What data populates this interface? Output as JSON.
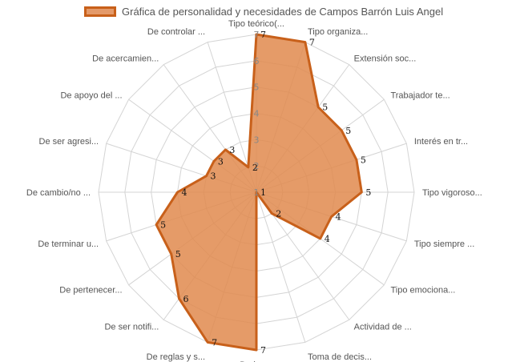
{
  "legend": {
    "label": "Gráfica de personalidad y necesidades de Campos Barrón Luis Angel"
  },
  "colors": {
    "fill": "#e08a4e",
    "stroke": "#c8601a",
    "grid": "#d4d4d4",
    "swatch_fill": "#e49a6a"
  },
  "chart_data": {
    "type": "radar",
    "title": "",
    "legend_position": "top",
    "grid": true,
    "rlim": [
      1,
      7
    ],
    "ticks": [
      "1",
      "2",
      "3",
      "4",
      "5",
      "6",
      "7"
    ],
    "categories": [
      "Tipo teórico(...",
      "Tipo organiza...",
      "Extensión soc...",
      "Trabajador te...",
      "Interés en tr...",
      "Tipo vigoroso...",
      "Tipo siempre ...",
      "Tipo emociona...",
      "Actividad de ...",
      "Toma de decis...",
      "De logro",
      "De reglas y s...",
      "De ser notifi...",
      "De pertenecer...",
      "De terminar u...",
      "De cambio/no ...",
      "De ser agresi...",
      "De apoyo del ...",
      "De acercamien...",
      "De controlar ..."
    ],
    "series": [
      {
        "name": "Gráfica de personalidad y necesidades de Campos Barrón Luis Angel",
        "values": [
          7,
          7,
          5,
          5,
          5,
          5,
          4,
          4,
          2,
          1,
          7,
          7,
          6,
          5,
          5,
          4,
          3,
          3,
          3,
          2
        ]
      }
    ]
  }
}
